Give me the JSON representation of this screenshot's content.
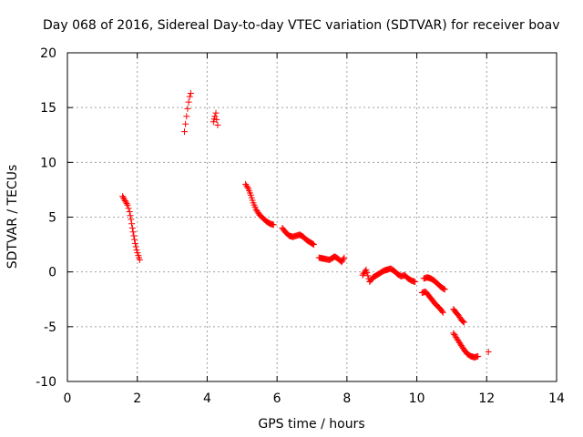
{
  "chart_data": {
    "type": "scatter",
    "title": "Day 068 of 2016, Sidereal Day-to-day VTEC variation (SDTVAR) for receiver boav",
    "xlabel": "GPS time / hours",
    "ylabel": "SDTVAR / TECUs",
    "xlim": [
      0,
      14
    ],
    "ylim": [
      -10,
      20
    ],
    "xticks": [
      0,
      2,
      4,
      6,
      8,
      10,
      12,
      14
    ],
    "yticks": [
      -10,
      -5,
      0,
      5,
      10,
      15,
      20
    ],
    "xtick_labels": [
      "0",
      "2",
      "4",
      "6",
      "8",
      "10",
      "12",
      "14"
    ],
    "ytick_labels": [
      "-10",
      "-5",
      "0",
      "5",
      "10",
      "15",
      "20"
    ],
    "grid": true,
    "marker": "plus",
    "color": "#ff0000",
    "series": [
      {
        "name": "SDTVAR",
        "segments": [
          [
            [
              1.58,
              6.9
            ],
            [
              1.65,
              6.5
            ],
            [
              1.72,
              6.1
            ],
            [
              1.78,
              5.5
            ],
            [
              1.82,
              4.8
            ],
            [
              1.86,
              4.0
            ],
            [
              1.9,
              3.3
            ],
            [
              1.94,
              2.6
            ],
            [
              1.98,
              2.0
            ],
            [
              2.03,
              1.5
            ],
            [
              2.07,
              1.1
            ]
          ],
          [
            [
              3.35,
              12.8
            ],
            [
              3.38,
              13.5
            ],
            [
              3.41,
              14.2
            ],
            [
              3.44,
              14.9
            ],
            [
              3.47,
              15.5
            ],
            [
              3.5,
              16.0
            ],
            [
              3.53,
              16.3
            ]
          ],
          [
            [
              4.18,
              13.7
            ],
            [
              4.22,
              14.2
            ],
            [
              4.25,
              14.5
            ],
            [
              4.27,
              13.9
            ],
            [
              4.3,
              13.4
            ]
          ],
          [
            [
              5.1,
              8.0
            ],
            [
              5.18,
              7.6
            ],
            [
              5.25,
              7.0
            ],
            [
              5.32,
              6.3
            ],
            [
              5.4,
              5.7
            ],
            [
              5.5,
              5.2
            ],
            [
              5.6,
              4.9
            ],
            [
              5.7,
              4.6
            ],
            [
              5.8,
              4.4
            ],
            [
              5.9,
              4.3
            ]
          ],
          [
            [
              6.15,
              4.0
            ],
            [
              6.25,
              3.6
            ],
            [
              6.35,
              3.3
            ],
            [
              6.45,
              3.2
            ],
            [
              6.55,
              3.3
            ],
            [
              6.65,
              3.4
            ],
            [
              6.75,
              3.2
            ],
            [
              6.85,
              2.9
            ],
            [
              6.95,
              2.7
            ],
            [
              7.05,
              2.5
            ]
          ],
          [
            [
              7.2,
              1.3
            ],
            [
              7.35,
              1.2
            ],
            [
              7.5,
              1.1
            ],
            [
              7.65,
              1.4
            ],
            [
              7.75,
              1.2
            ],
            [
              7.85,
              0.9
            ],
            [
              7.92,
              1.3
            ]
          ],
          [
            [
              8.45,
              -0.3
            ],
            [
              8.55,
              0.2
            ],
            [
              8.65,
              -0.9
            ],
            [
              8.75,
              -0.5
            ],
            [
              8.85,
              -0.3
            ],
            [
              8.95,
              -0.1
            ],
            [
              9.05,
              0.1
            ],
            [
              9.15,
              0.2
            ],
            [
              9.25,
              0.3
            ],
            [
              9.35,
              0.1
            ],
            [
              9.45,
              -0.2
            ],
            [
              9.55,
              -0.4
            ],
            [
              9.65,
              -0.3
            ],
            [
              9.75,
              -0.6
            ],
            [
              9.85,
              -0.8
            ],
            [
              9.95,
              -0.9
            ]
          ],
          [
            [
              10.2,
              -0.6
            ],
            [
              10.3,
              -0.5
            ],
            [
              10.4,
              -0.6
            ],
            [
              10.5,
              -0.8
            ],
            [
              10.6,
              -1.1
            ],
            [
              10.7,
              -1.4
            ],
            [
              10.8,
              -1.6
            ]
          ],
          [
            [
              10.15,
              -1.9
            ],
            [
              10.25,
              -1.8
            ],
            [
              10.35,
              -2.2
            ],
            [
              10.45,
              -2.6
            ],
            [
              10.55,
              -3.0
            ],
            [
              10.65,
              -3.3
            ],
            [
              10.75,
              -3.7
            ]
          ],
          [
            [
              11.05,
              -3.4
            ],
            [
              11.12,
              -3.7
            ],
            [
              11.2,
              -4.0
            ],
            [
              11.28,
              -4.4
            ],
            [
              11.35,
              -4.6
            ]
          ],
          [
            [
              11.05,
              -5.6
            ],
            [
              11.15,
              -6.1
            ],
            [
              11.25,
              -6.6
            ],
            [
              11.35,
              -7.1
            ],
            [
              11.45,
              -7.5
            ],
            [
              11.55,
              -7.7
            ],
            [
              11.65,
              -7.8
            ],
            [
              11.75,
              -7.7
            ]
          ],
          [
            [
              12.05,
              -7.3
            ]
          ]
        ]
      }
    ]
  }
}
